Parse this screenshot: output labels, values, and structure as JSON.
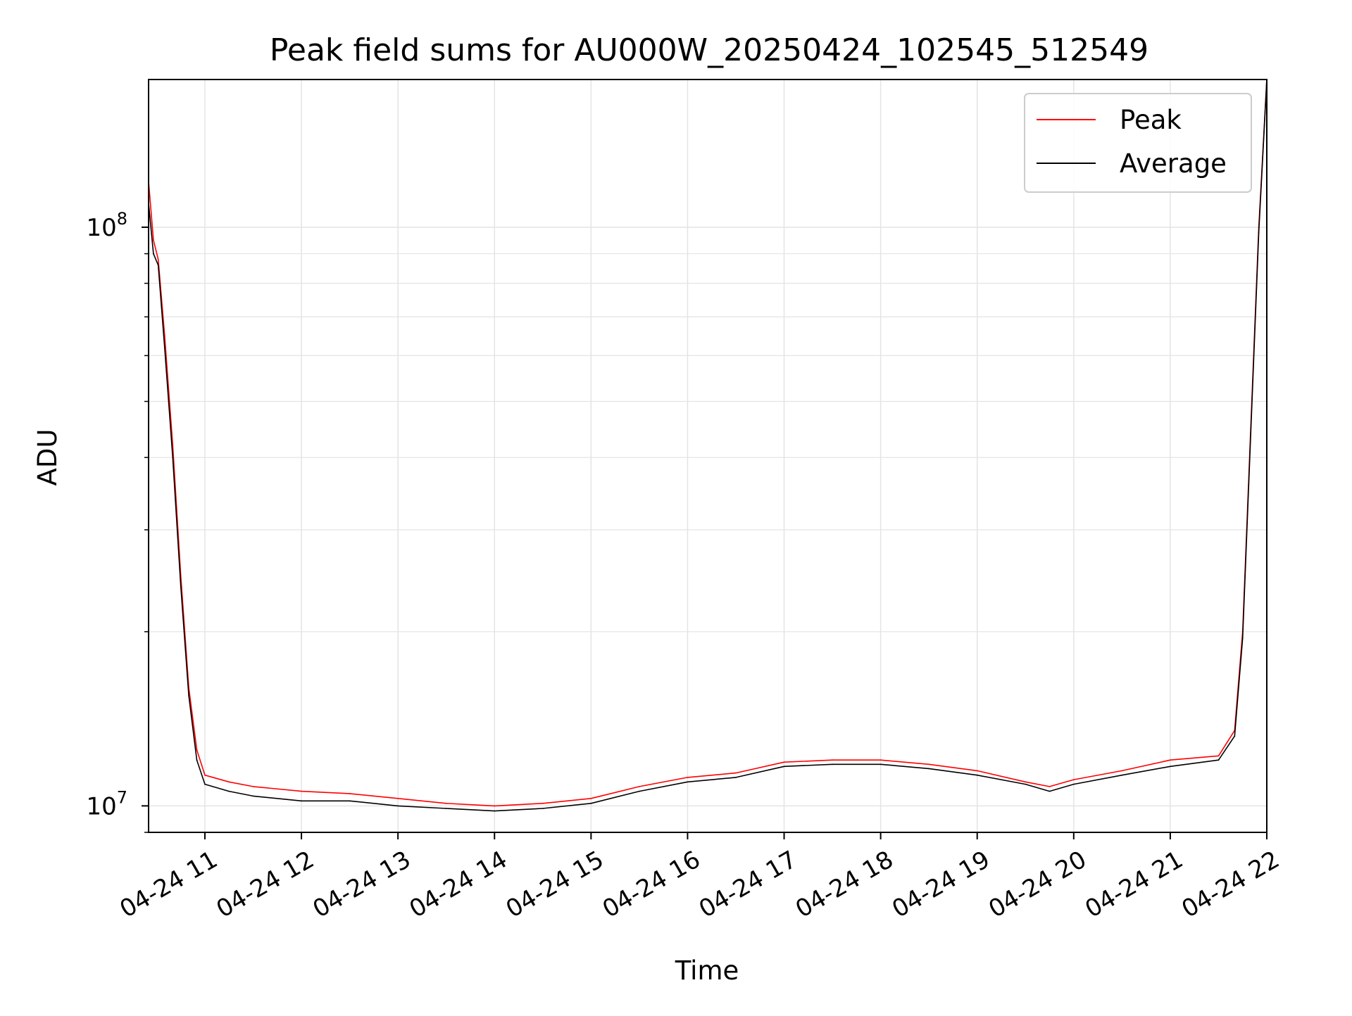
{
  "chart_data": {
    "type": "line",
    "title": "Peak field sums for AU000W_20250424_102545_512549",
    "xlabel": "Time",
    "ylabel": "ADU",
    "x_range": [
      "2025-04-24 10:25",
      "2025-04-24 22:00"
    ],
    "ylim": [
      9000000,
      180000000
    ],
    "y_scale": "log",
    "grid": true,
    "legend_position": "top-right",
    "x_ticks": [
      {
        "value": "2025-04-24 11:00",
        "label": "04-24 11"
      },
      {
        "value": "2025-04-24 12:00",
        "label": "04-24 12"
      },
      {
        "value": "2025-04-24 13:00",
        "label": "04-24 13"
      },
      {
        "value": "2025-04-24 14:00",
        "label": "04-24 14"
      },
      {
        "value": "2025-04-24 15:00",
        "label": "04-24 15"
      },
      {
        "value": "2025-04-24 16:00",
        "label": "04-24 16"
      },
      {
        "value": "2025-04-24 17:00",
        "label": "04-24 17"
      },
      {
        "value": "2025-04-24 18:00",
        "label": "04-24 18"
      },
      {
        "value": "2025-04-24 19:00",
        "label": "04-24 19"
      },
      {
        "value": "2025-04-24 20:00",
        "label": "04-24 20"
      },
      {
        "value": "2025-04-24 21:00",
        "label": "04-24 21"
      },
      {
        "value": "2025-04-24 22:00",
        "label": "04-24 22"
      }
    ],
    "y_ticks": [
      {
        "value": 10000000,
        "base": "10",
        "exp": "7"
      },
      {
        "value": 100000000,
        "base": "10",
        "exp": "8"
      }
    ],
    "series": [
      {
        "name": "Peak",
        "color": "#ff0000",
        "x": [
          "2025-04-24 10:25",
          "2025-04-24 10:28",
          "2025-04-24 10:31",
          "2025-04-24 10:35",
          "2025-04-24 10:40",
          "2025-04-24 10:45",
          "2025-04-24 10:50",
          "2025-04-24 10:55",
          "2025-04-24 11:00",
          "2025-04-24 11:15",
          "2025-04-24 11:30",
          "2025-04-24 12:00",
          "2025-04-24 12:30",
          "2025-04-24 13:00",
          "2025-04-24 13:30",
          "2025-04-24 14:00",
          "2025-04-24 14:30",
          "2025-04-24 15:00",
          "2025-04-24 15:30",
          "2025-04-24 16:00",
          "2025-04-24 16:30",
          "2025-04-24 17:00",
          "2025-04-24 17:30",
          "2025-04-24 18:00",
          "2025-04-24 18:30",
          "2025-04-24 19:00",
          "2025-04-24 19:30",
          "2025-04-24 19:45",
          "2025-04-24 20:00",
          "2025-04-24 20:30",
          "2025-04-24 21:00",
          "2025-04-24 21:30",
          "2025-04-24 21:40",
          "2025-04-24 21:45",
          "2025-04-24 21:50",
          "2025-04-24 21:55",
          "2025-04-24 22:00"
        ],
        "y": [
          120000000,
          95000000,
          88000000,
          65000000,
          42000000,
          25000000,
          16000000,
          12500000,
          11300000,
          11000000,
          10800000,
          10600000,
          10500000,
          10300000,
          10100000,
          10000000,
          10100000,
          10300000,
          10800000,
          11200000,
          11400000,
          11900000,
          12000000,
          12000000,
          11800000,
          11500000,
          11000000,
          10800000,
          11100000,
          11500000,
          12000000,
          12200000,
          13500000,
          20000000,
          45000000,
          100000000,
          180000000
        ]
      },
      {
        "name": "Average",
        "color": "#000000",
        "x": [
          "2025-04-24 10:25",
          "2025-04-24 10:28",
          "2025-04-24 10:31",
          "2025-04-24 10:35",
          "2025-04-24 10:40",
          "2025-04-24 10:45",
          "2025-04-24 10:50",
          "2025-04-24 10:55",
          "2025-04-24 11:00",
          "2025-04-24 11:15",
          "2025-04-24 11:30",
          "2025-04-24 12:00",
          "2025-04-24 12:30",
          "2025-04-24 13:00",
          "2025-04-24 13:30",
          "2025-04-24 14:00",
          "2025-04-24 14:30",
          "2025-04-24 15:00",
          "2025-04-24 15:30",
          "2025-04-24 16:00",
          "2025-04-24 16:30",
          "2025-04-24 17:00",
          "2025-04-24 17:30",
          "2025-04-24 18:00",
          "2025-04-24 18:30",
          "2025-04-24 19:00",
          "2025-04-24 19:30",
          "2025-04-24 19:45",
          "2025-04-24 20:00",
          "2025-04-24 20:30",
          "2025-04-24 21:00",
          "2025-04-24 21:30",
          "2025-04-24 21:40",
          "2025-04-24 21:45",
          "2025-04-24 21:50",
          "2025-04-24 21:55",
          "2025-04-24 22:00"
        ],
        "y": [
          110000000,
          90000000,
          86000000,
          62000000,
          40000000,
          24000000,
          15500000,
          12000000,
          10900000,
          10600000,
          10400000,
          10200000,
          10200000,
          10000000,
          9900000,
          9800000,
          9900000,
          10100000,
          10600000,
          11000000,
          11200000,
          11700000,
          11800000,
          11800000,
          11600000,
          11300000,
          10900000,
          10600000,
          10900000,
          11300000,
          11700000,
          12000000,
          13200000,
          19500000,
          44000000,
          98000000,
          180000000
        ]
      }
    ]
  }
}
